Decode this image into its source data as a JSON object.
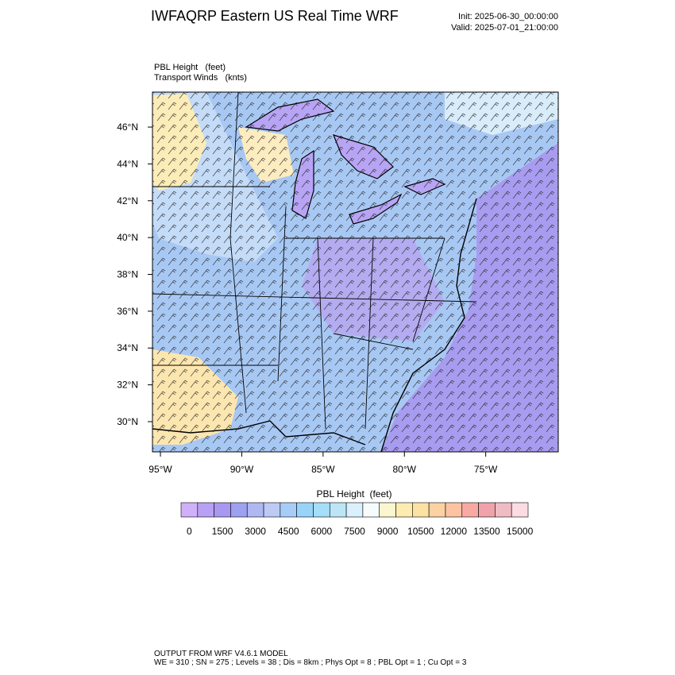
{
  "header": {
    "title": "IWFAQRP Eastern US Real Time WRF",
    "init": "Init: 2025-06-30_00:00:00",
    "valid": "Valid: 2025-07-01_21:00:00"
  },
  "map": {
    "field_label": "PBL Height   (feet)",
    "wind_label": "Transport Winds   (knts)",
    "xlim": [
      -95.49,
      -70.54
    ],
    "ylim": [
      28.36,
      47.9
    ],
    "xticks": [
      {
        "value": -95,
        "label": "95°W"
      },
      {
        "value": -90,
        "label": "90°W"
      },
      {
        "value": -85,
        "label": "85°W"
      },
      {
        "value": -80,
        "label": "80°W"
      },
      {
        "value": -75,
        "label": "75°W"
      }
    ],
    "yticks": [
      {
        "value": 30,
        "label": "30°N"
      },
      {
        "value": 32,
        "label": "32°N"
      },
      {
        "value": 34,
        "label": "34°N"
      },
      {
        "value": 36,
        "label": "36°N"
      },
      {
        "value": 38,
        "label": "38°N"
      },
      {
        "value": 40,
        "label": "40°N"
      },
      {
        "value": 42,
        "label": "42°N"
      },
      {
        "value": 44,
        "label": "44°N"
      },
      {
        "value": 46,
        "label": "46°N"
      }
    ]
  },
  "colorbar": {
    "title": "PBL Height  (feet)",
    "clim": [
      0,
      15000
    ],
    "ticks": [
      0,
      1500,
      3000,
      4500,
      6000,
      7500,
      9000,
      10500,
      12000,
      13500,
      15000
    ],
    "colors": [
      "#d0b0f8",
      "#b8a0f4",
      "#a898f0",
      "#9ea0f0",
      "#b0b8f2",
      "#bccaf4",
      "#a8ccf8",
      "#98d4f8",
      "#a4def8",
      "#bce6f8",
      "#daf0fc",
      "#f6fcfc",
      "#fcf6d0",
      "#fcecb0",
      "#fce2a2",
      "#fcd2a2",
      "#fcc2a2",
      "#f8aaa2",
      "#f0a2aa",
      "#f0bcc4",
      "#fcdce2"
    ]
  },
  "footer": {
    "line1": "OUTPUT FROM WRF V4.6.1 MODEL",
    "line2": "WE = 310 ; SN = 275 ; Levels = 38 ; Dis = 8km ; Phys Opt = 8 ; PBL Opt = 1 ; Cu Opt = 3"
  }
}
